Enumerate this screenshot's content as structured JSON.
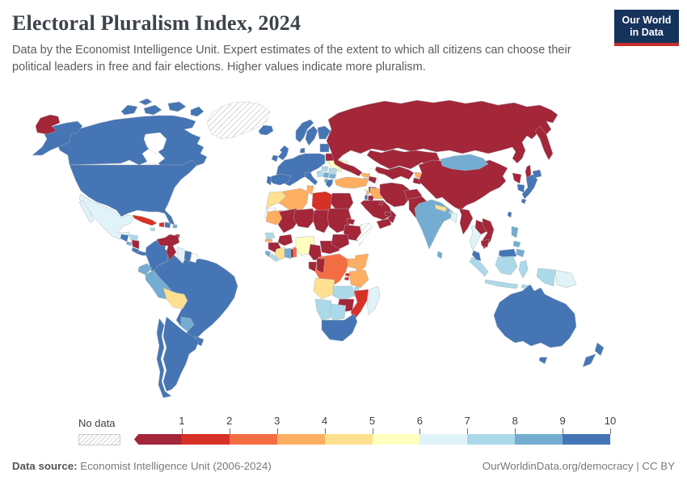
{
  "header": {
    "title": "Electoral Pluralism Index, 2024",
    "subtitle": "Data by the Economist Intelligence Unit. Expert estimates of the extent to which all citizens can choose their political leaders in free and fair elections. Higher values indicate more pluralism.",
    "logo": {
      "line1": "Our World",
      "line2": "in Data",
      "bg_color": "#16335c",
      "accent_color": "#c5312b"
    }
  },
  "legend": {
    "no_data_label": "No data",
    "ticks": [
      "1",
      "2",
      "3",
      "4",
      "5",
      "6",
      "7",
      "8",
      "9",
      "10"
    ],
    "colors": [
      "#a32639",
      "#d73027",
      "#f46d43",
      "#fdae61",
      "#fee090",
      "#ffffbf",
      "#e0f3f8",
      "#abd9e9",
      "#74add1",
      "#4575b4"
    ]
  },
  "footer": {
    "source_label": "Data source:",
    "source_value": " Economist Intelligence Unit (2006-2024)",
    "right_text": "OurWorldinData.org/democracy | CC BY"
  },
  "map": {
    "ocean_color": "#ffffff",
    "countries": [
      {
        "id": "canada",
        "color": "#4575b4"
      },
      {
        "id": "canada-islands",
        "color": "#4575b4"
      },
      {
        "id": "alaska",
        "color": "#4575b4"
      },
      {
        "id": "usa",
        "color": "#4575b4"
      },
      {
        "id": "greenland",
        "color": "nodata"
      },
      {
        "id": "iceland",
        "color": "#4575b4"
      },
      {
        "id": "chukotka-wrap",
        "color": "#a32639"
      },
      {
        "id": "mexico",
        "color": "#e0f3f8"
      },
      {
        "id": "baja",
        "color": "#e0f3f8"
      },
      {
        "id": "cuba",
        "color": "#d73027"
      },
      {
        "id": "jamaica",
        "color": "#abd9e9"
      },
      {
        "id": "haiti",
        "color": "#d73027"
      },
      {
        "id": "dominican-republic",
        "color": "#4575b4"
      },
      {
        "id": "puerto-rico",
        "color": "#74add1"
      },
      {
        "id": "guatemala",
        "color": "#4575b4"
      },
      {
        "id": "honduras",
        "color": "#abd9e9"
      },
      {
        "id": "el-salvador",
        "color": "#74add1"
      },
      {
        "id": "nicaragua",
        "color": "#a32639"
      },
      {
        "id": "costa-rica",
        "color": "#4575b4"
      },
      {
        "id": "panama",
        "color": "#4575b4"
      },
      {
        "id": "trinidad",
        "color": "#a32639"
      },
      {
        "id": "colombia",
        "color": "#4575b4"
      },
      {
        "id": "venezuela",
        "color": "#a32639"
      },
      {
        "id": "guyana",
        "color": "#e0f3f8"
      },
      {
        "id": "suriname",
        "color": "#4575b4"
      },
      {
        "id": "french-guiana",
        "color": "#ffffff"
      },
      {
        "id": "ecuador",
        "color": "#74add1"
      },
      {
        "id": "peru",
        "color": "#74add1"
      },
      {
        "id": "brazil",
        "color": "#4575b4"
      },
      {
        "id": "bolivia",
        "color": "#fee090"
      },
      {
        "id": "paraguay",
        "color": "#74add1"
      },
      {
        "id": "uruguay",
        "color": "#4575b4"
      },
      {
        "id": "argentina",
        "color": "#4575b4"
      },
      {
        "id": "chile",
        "color": "#4575b4"
      },
      {
        "id": "uk",
        "color": "#4575b4"
      },
      {
        "id": "ireland",
        "color": "#4575b4"
      },
      {
        "id": "norway",
        "color": "#4575b4"
      },
      {
        "id": "sweden",
        "color": "#4575b4"
      },
      {
        "id": "finland",
        "color": "#4575b4"
      },
      {
        "id": "denmark",
        "color": "#4575b4"
      },
      {
        "id": "baltics",
        "color": "#4575b4"
      },
      {
        "id": "western-europe",
        "color": "#4575b4"
      },
      {
        "id": "spain",
        "color": "#4575b4"
      },
      {
        "id": "portugal",
        "color": "#4575b4"
      },
      {
        "id": "italy",
        "color": "#4575b4"
      },
      {
        "id": "sicily",
        "color": "#4575b4"
      },
      {
        "id": "belarus",
        "color": "#a32639"
      },
      {
        "id": "ukraine",
        "color": "#ffffbf"
      },
      {
        "id": "moldova",
        "color": "#ffffbf"
      },
      {
        "id": "hungary",
        "color": "#abd9e9"
      },
      {
        "id": "romania",
        "color": "#abd9e9"
      },
      {
        "id": "west-balkans",
        "color": "#abd9e9"
      },
      {
        "id": "serbia",
        "color": "#74add1"
      },
      {
        "id": "bulgaria",
        "color": "#74add1"
      },
      {
        "id": "albania-macedonia",
        "color": "#74add1"
      },
      {
        "id": "greece",
        "color": "#4575b4"
      },
      {
        "id": "russia",
        "color": "#a32639"
      },
      {
        "id": "kamchatka",
        "color": "#a32639"
      },
      {
        "id": "sakhalin",
        "color": "#a32639"
      },
      {
        "id": "kazakhstan",
        "color": "#a32639"
      },
      {
        "id": "uzbekistan-turkmenistan",
        "color": "#a32639"
      },
      {
        "id": "tajikistan",
        "color": "#a32639"
      },
      {
        "id": "kyrgyzstan",
        "color": "#fdae61"
      },
      {
        "id": "georgia",
        "color": "#fdae61"
      },
      {
        "id": "armenia",
        "color": "#fdae61"
      },
      {
        "id": "azerbaijan",
        "color": "#a32639"
      },
      {
        "id": "turkey",
        "color": "#fdae61"
      },
      {
        "id": "cyprus",
        "color": "#ffffbf"
      },
      {
        "id": "syria",
        "color": "#a32639"
      },
      {
        "id": "lebanon",
        "color": "#fdae61"
      },
      {
        "id": "israel",
        "color": "#4575b4"
      },
      {
        "id": "jordan",
        "color": "#a32639"
      },
      {
        "id": "iraq",
        "color": "#fdae61"
      },
      {
        "id": "saudi-arabia",
        "color": "#a32639"
      },
      {
        "id": "yemen",
        "color": "#a32639"
      },
      {
        "id": "oman",
        "color": "#a32639"
      },
      {
        "id": "uae",
        "color": "#a32639"
      },
      {
        "id": "kuwait",
        "color": "#a32639"
      },
      {
        "id": "iran",
        "color": "#a32639"
      },
      {
        "id": "afghanistan",
        "color": "#a32639"
      },
      {
        "id": "pakistan",
        "color": "#a32639"
      },
      {
        "id": "india",
        "color": "#74add1"
      },
      {
        "id": "nepal",
        "color": "#fee090"
      },
      {
        "id": "bhutan",
        "color": "#abd9e9"
      },
      {
        "id": "bangladesh",
        "color": "#e0f3f8"
      },
      {
        "id": "sri-lanka",
        "color": "#74add1"
      },
      {
        "id": "myanmar",
        "color": "#a32639"
      },
      {
        "id": "thailand",
        "color": "#e0f3f8"
      },
      {
        "id": "laos",
        "color": "#a32639"
      },
      {
        "id": "vietnam",
        "color": "#a32639"
      },
      {
        "id": "cambodia",
        "color": "#a32639"
      },
      {
        "id": "china",
        "color": "#a32639"
      },
      {
        "id": "mongolia",
        "color": "#74add1"
      },
      {
        "id": "north-korea",
        "color": "#a32639"
      },
      {
        "id": "south-korea",
        "color": "#4575b4"
      },
      {
        "id": "japan",
        "color": "#4575b4"
      },
      {
        "id": "hokkaido",
        "color": "#4575b4"
      },
      {
        "id": "kyushu",
        "color": "#4575b4"
      },
      {
        "id": "taiwan",
        "color": "#4575b4"
      },
      {
        "id": "philippines-luzon",
        "color": "#74add1"
      },
      {
        "id": "philippines-visayas",
        "color": "#74add1"
      },
      {
        "id": "philippines-mindanao",
        "color": "#74add1"
      },
      {
        "id": "malaysia",
        "color": "#4575b4"
      },
      {
        "id": "malaysia-borneo",
        "color": "#4575b4"
      },
      {
        "id": "sumatra",
        "color": "#abd9e9"
      },
      {
        "id": "kalimantan",
        "color": "#abd9e9"
      },
      {
        "id": "sulawesi",
        "color": "#abd9e9"
      },
      {
        "id": "java",
        "color": "#abd9e9"
      },
      {
        "id": "lesser-sunda",
        "color": "#abd9e9"
      },
      {
        "id": "west-papua",
        "color": "#abd9e9"
      },
      {
        "id": "papua-new-guinea",
        "color": "#e0f3f8"
      },
      {
        "id": "australia",
        "color": "#4575b4"
      },
      {
        "id": "tasmania",
        "color": "#4575b4"
      },
      {
        "id": "new-zealand-north",
        "color": "#4575b4"
      },
      {
        "id": "new-zealand-south",
        "color": "#4575b4"
      },
      {
        "id": "morocco",
        "color": "#fee090"
      },
      {
        "id": "western-sahara",
        "color": "nodata"
      },
      {
        "id": "algeria",
        "color": "#fdae61"
      },
      {
        "id": "tunisia",
        "color": "#fdae61"
      },
      {
        "id": "libya",
        "color": "#d73027"
      },
      {
        "id": "egypt",
        "color": "#a32639"
      },
      {
        "id": "mauritania",
        "color": "#fdae61"
      },
      {
        "id": "mali",
        "color": "#a32639"
      },
      {
        "id": "niger",
        "color": "#a32639"
      },
      {
        "id": "chad",
        "color": "#a32639"
      },
      {
        "id": "sudan",
        "color": "#a32639"
      },
      {
        "id": "eritrea",
        "color": "#a32639"
      },
      {
        "id": "ethiopia",
        "color": "#a32639"
      },
      {
        "id": "somalia",
        "color": "nodata"
      },
      {
        "id": "senegal",
        "color": "#abd9e9"
      },
      {
        "id": "gambia",
        "color": "#fdae61"
      },
      {
        "id": "guinea",
        "color": "#a32639"
      },
      {
        "id": "sierra-leone",
        "color": "#74add1"
      },
      {
        "id": "liberia",
        "color": "#abd9e9"
      },
      {
        "id": "ivory-coast",
        "color": "#fee090"
      },
      {
        "id": "ghana",
        "color": "#74add1"
      },
      {
        "id": "togo",
        "color": "#a32639"
      },
      {
        "id": "benin",
        "color": "#f46d43"
      },
      {
        "id": "burkina-faso",
        "color": "#a32639"
      },
      {
        "id": "nigeria",
        "color": "#ffffbf"
      },
      {
        "id": "cameroon",
        "color": "#a32639"
      },
      {
        "id": "central-african-republic",
        "color": "#a32639"
      },
      {
        "id": "south-sudan",
        "color": "#a32639"
      },
      {
        "id": "uganda",
        "color": "#fdae61"
      },
      {
        "id": "kenya",
        "color": "#fdae61"
      },
      {
        "id": "drc",
        "color": "#f46d43"
      },
      {
        "id": "gabon",
        "color": "#a32639"
      },
      {
        "id": "congo",
        "color": "#a32639"
      },
      {
        "id": "rwanda",
        "color": "#d73027"
      },
      {
        "id": "burundi",
        "color": "#d73027"
      },
      {
        "id": "tanzania",
        "color": "#fdae61"
      },
      {
        "id": "angola",
        "color": "#fee090"
      },
      {
        "id": "zambia",
        "color": "#abd9e9"
      },
      {
        "id": "malawi",
        "color": "#abd9e9"
      },
      {
        "id": "mozambique",
        "color": "#d73027"
      },
      {
        "id": "zimbabwe",
        "color": "#a32639"
      },
      {
        "id": "botswana",
        "color": "#abd9e9"
      },
      {
        "id": "namibia",
        "color": "#abd9e9"
      },
      {
        "id": "south-africa",
        "color": "#4575b4"
      },
      {
        "id": "madagascar",
        "color": "#e0f3f8"
      }
    ]
  }
}
